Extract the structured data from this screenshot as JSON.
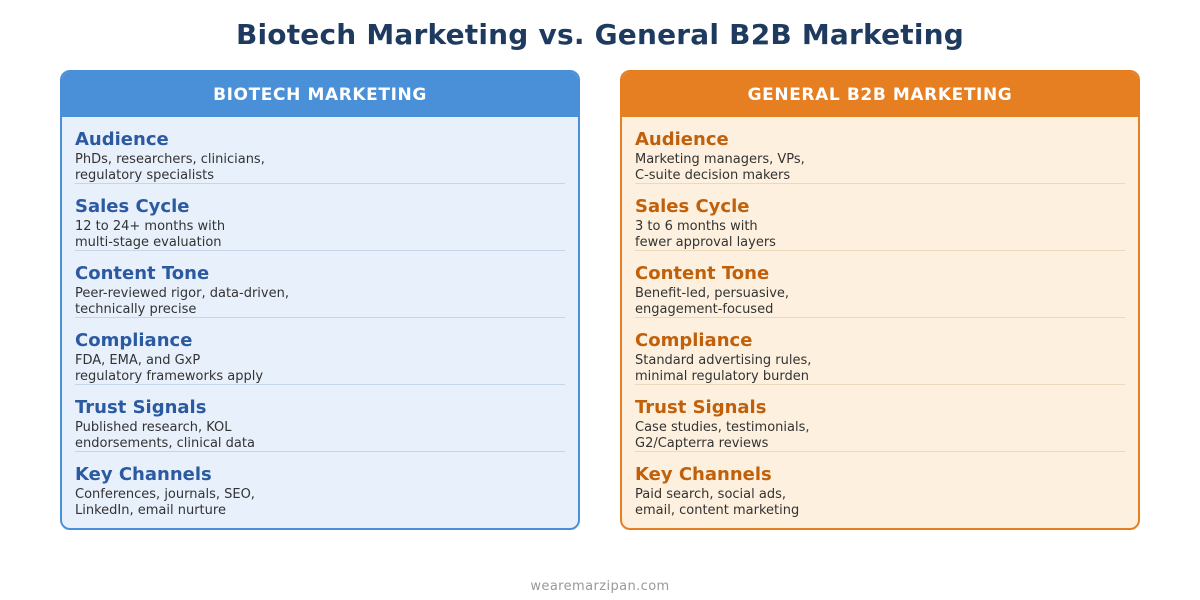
{
  "title": "Biotech Marketing vs. General B2B Marketing",
  "colors": {
    "title": "#1f3a5f",
    "biotech_accent": "#4a90d9",
    "biotech_heading": "#2c5aa0",
    "biotech_bg": "#e8f0fc",
    "b2b_accent": "#e67e22",
    "b2b_heading": "#c0600a",
    "b2b_bg": "#fdf0de"
  },
  "biotech": {
    "header": "BIOTECH MARKETING",
    "rows": [
      {
        "heading": "Audience",
        "line1": "PhDs, researchers, clinicians,",
        "line2": "regulatory specialists"
      },
      {
        "heading": "Sales Cycle",
        "line1": "12 to 24+ months with",
        "line2": "multi-stage evaluation"
      },
      {
        "heading": "Content Tone",
        "line1": "Peer-reviewed rigor, data-driven,",
        "line2": "technically precise"
      },
      {
        "heading": "Compliance",
        "line1": "FDA, EMA, and GxP",
        "line2": "regulatory frameworks apply"
      },
      {
        "heading": "Trust Signals",
        "line1": "Published research, KOL",
        "line2": "endorsements, clinical data"
      },
      {
        "heading": "Key Channels",
        "line1": "Conferences, journals, SEO,",
        "line2": "LinkedIn, email nurture"
      }
    ]
  },
  "b2b": {
    "header": "GENERAL B2B MARKETING",
    "rows": [
      {
        "heading": "Audience",
        "line1": "Marketing managers, VPs,",
        "line2": "C-suite decision makers"
      },
      {
        "heading": "Sales Cycle",
        "line1": "3 to 6 months with",
        "line2": "fewer approval layers"
      },
      {
        "heading": "Content Tone",
        "line1": "Benefit-led, persuasive,",
        "line2": "engagement-focused"
      },
      {
        "heading": "Compliance",
        "line1": "Standard advertising rules,",
        "line2": "minimal regulatory burden"
      },
      {
        "heading": "Trust Signals",
        "line1": "Case studies, testimonials,",
        "line2": "G2/Capterra reviews"
      },
      {
        "heading": "Key Channels",
        "line1": "Paid search, social ads,",
        "line2": "email, content marketing"
      }
    ]
  },
  "footer": "wearemarzipan.com"
}
